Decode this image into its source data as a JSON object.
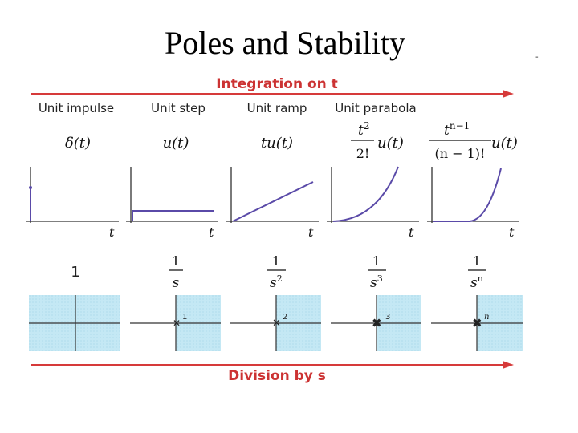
{
  "title": "Poles and Stability",
  "corner_mark": "-",
  "top_arrow_label": "Integration on t",
  "bottom_arrow_label": "Division by s",
  "axis_var": "t",
  "colors": {
    "arrow": "#d63a3a",
    "curve": "#5a4aa8",
    "region": "#bfe6f2",
    "pole": "#2a2a9a",
    "axis": "#333333"
  },
  "columns": [
    {
      "name": "Unit impulse",
      "time_fn": "δ(t)",
      "laplace": "1",
      "pole_order": ""
    },
    {
      "name": "Unit step",
      "time_fn": "u(t)",
      "laplace_num": "1",
      "laplace_den": "s",
      "pole_order": "1"
    },
    {
      "name": "Unit ramp",
      "time_fn": "tu(t)",
      "laplace_num": "1",
      "laplace_den": "s",
      "laplace_den_exp": "2",
      "pole_order": "2"
    },
    {
      "name": "Unit parabola",
      "time_fn_num": "t",
      "time_fn_num_exp": "2",
      "time_fn_den": "2!",
      "time_fn_rest": "u(t)",
      "laplace_num": "1",
      "laplace_den": "s",
      "laplace_den_exp": "3",
      "pole_order": "3"
    },
    {
      "name": "",
      "time_fn_num": "t",
      "time_fn_num_exp": "n−1",
      "time_fn_den": "(n − 1)!",
      "time_fn_rest": "u(t)",
      "laplace_num": "1",
      "laplace_den": "s",
      "laplace_den_exp": "n",
      "pole_order": "n"
    }
  ]
}
